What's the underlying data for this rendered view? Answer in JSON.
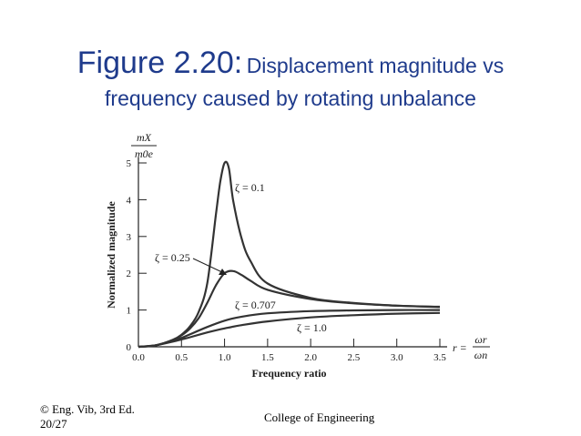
{
  "slide": {
    "title_main": "Figure 2.20:",
    "title_rest": "Displacement magnitude vs",
    "title_line2": "frequency caused by rotating unbalance",
    "footer_left_1": "© Eng. Vib, 3rd Ed.",
    "footer_left_2": "20/27",
    "footer_center": "College of Engineering"
  },
  "chart_data": {
    "type": "line",
    "title": "",
    "xlabel": "Frequency ratio",
    "ylabel": "Normalized magnitude",
    "ylabel_top_num": "mX",
    "ylabel_top_den": "m0e",
    "r_label": "r =",
    "r_num": "ωr",
    "r_den": "ωn",
    "xlim": [
      0,
      3.5
    ],
    "ylim": [
      0,
      5
    ],
    "x_ticks": [
      "0.0",
      "0.5",
      "1.0",
      "1.5",
      "2.0",
      "2.5",
      "3.0",
      "3.5"
    ],
    "y_ticks": [
      "0",
      "1",
      "2",
      "3",
      "4",
      "5"
    ],
    "grid": false,
    "series": [
      {
        "name": "ζ = 0.1",
        "zeta": 0.1,
        "x": [
          0,
          0.2,
          0.4,
          0.5,
          0.6,
          0.7,
          0.8,
          0.9,
          0.95,
          1.0,
          1.05,
          1.1,
          1.2,
          1.3,
          1.5,
          2.0,
          2.5,
          3.0,
          3.5
        ],
        "values": [
          0,
          0.04,
          0.19,
          0.33,
          0.56,
          0.95,
          1.74,
          3.6,
          4.48,
          5.0,
          4.86,
          3.98,
          2.93,
          2.34,
          1.72,
          1.33,
          1.19,
          1.12,
          1.09
        ]
      },
      {
        "name": "ζ = 0.25",
        "zeta": 0.25,
        "x": [
          0,
          0.2,
          0.4,
          0.5,
          0.6,
          0.7,
          0.8,
          0.9,
          1.0,
          1.1,
          1.2,
          1.3,
          1.5,
          2.0,
          2.5,
          3.0,
          3.5
        ],
        "values": [
          0,
          0.04,
          0.18,
          0.31,
          0.5,
          0.78,
          1.2,
          1.67,
          2.0,
          2.06,
          1.95,
          1.8,
          1.55,
          1.3,
          1.18,
          1.12,
          1.08
        ]
      },
      {
        "name": "ζ = 0.707",
        "zeta": 0.707,
        "x": [
          0,
          0.2,
          0.4,
          0.5,
          0.6,
          0.8,
          1.0,
          1.2,
          1.5,
          2.0,
          2.5,
          3.0,
          3.5
        ],
        "values": [
          0,
          0.04,
          0.16,
          0.24,
          0.34,
          0.54,
          0.71,
          0.82,
          0.91,
          0.97,
          0.99,
          1.0,
          1.0
        ]
      },
      {
        "name": "ζ = 1.0",
        "zeta": 1.0,
        "x": [
          0,
          0.2,
          0.4,
          0.5,
          0.6,
          0.8,
          1.0,
          1.2,
          1.5,
          2.0,
          2.5,
          3.0,
          3.5
        ],
        "values": [
          0,
          0.04,
          0.14,
          0.2,
          0.26,
          0.39,
          0.5,
          0.59,
          0.69,
          0.8,
          0.86,
          0.9,
          0.92
        ]
      }
    ]
  }
}
